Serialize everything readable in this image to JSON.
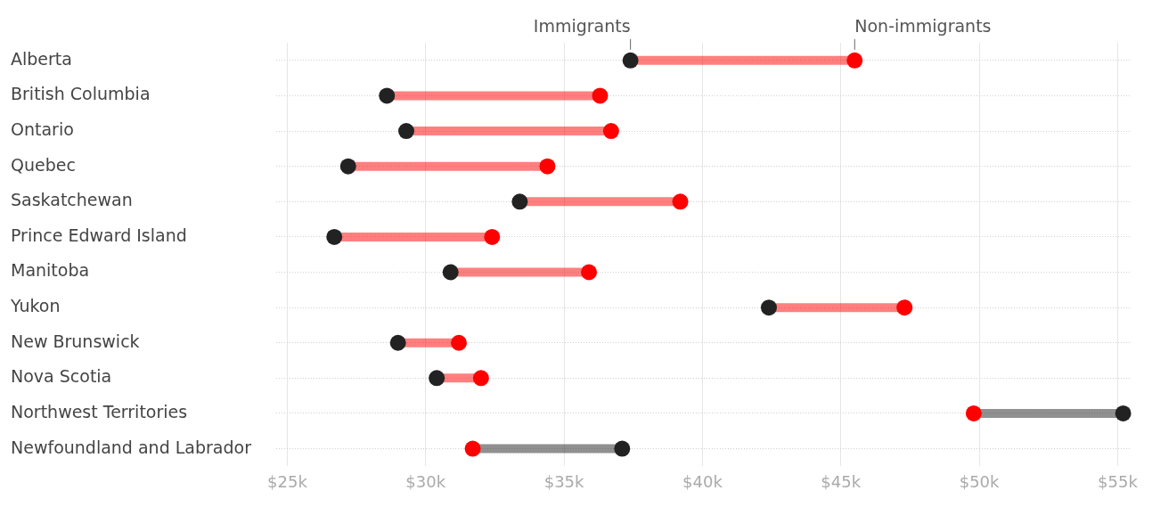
{
  "chart_data": {
    "type": "scatter",
    "categories": [
      "Alberta",
      "British Columbia",
      "Ontario",
      "Quebec",
      "Saskatchewan",
      "Prince Edward Island",
      "Manitoba",
      "Yukon",
      "New Brunswick",
      "Nova Scotia",
      "Northwest Territories",
      "Newfoundland and Labrador"
    ],
    "series": [
      {
        "name": "Immigrants",
        "color": "#222222",
        "values": [
          37.4,
          28.6,
          29.3,
          27.2,
          33.4,
          26.7,
          30.9,
          42.4,
          29.0,
          30.4,
          55.2,
          37.1
        ]
      },
      {
        "name": "Non-immigrants",
        "color": "#ff0000",
        "values": [
          45.5,
          36.3,
          36.7,
          34.4,
          39.2,
          32.4,
          35.9,
          47.3,
          31.2,
          32.0,
          49.8,
          31.7
        ]
      }
    ],
    "orientation": "horizontal",
    "xlim": [
      24.6,
      55.5
    ],
    "xticks": [
      {
        "value": 25,
        "label": "$25k"
      },
      {
        "value": 30,
        "label": "$30k"
      },
      {
        "value": 35,
        "label": "$35k"
      },
      {
        "value": 40,
        "label": "$40k"
      },
      {
        "value": 45,
        "label": "$45k"
      },
      {
        "value": 50,
        "label": "$50k"
      },
      {
        "value": 55,
        "label": "$55k"
      }
    ],
    "grid": true,
    "legend": false,
    "marker": "circle"
  }
}
